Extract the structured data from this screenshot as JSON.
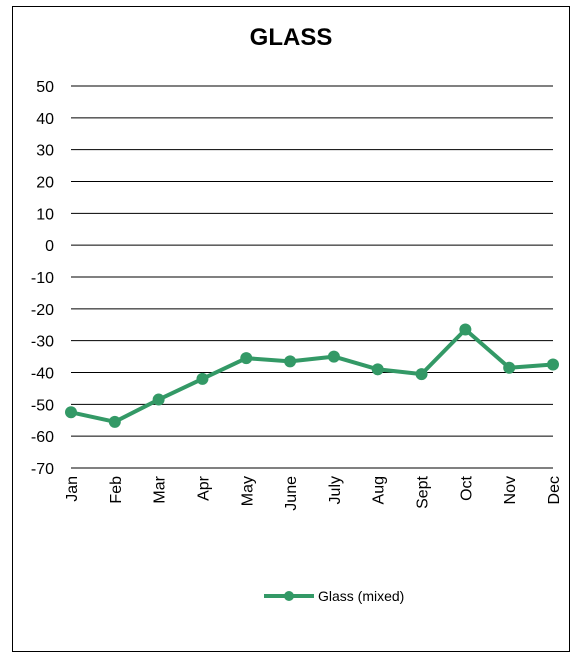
{
  "chart_data": {
    "type": "line",
    "title": "GLASS",
    "xlabel": "",
    "ylabel": "",
    "categories": [
      "Jan",
      "Feb",
      "Mar",
      "Apr",
      "May",
      "June",
      "July",
      "Aug",
      "Sept",
      "Oct",
      "Nov",
      "Dec"
    ],
    "y_ticks": [
      "50",
      "40",
      "30",
      "20",
      "10",
      "0",
      "-10",
      "-20",
      "-30",
      "-40",
      "-50",
      "-60",
      "-70"
    ],
    "ylim": [
      -70,
      50
    ],
    "grid": true,
    "legend_position": "bottom",
    "series": [
      {
        "name": "Glass (mixed)",
        "color": "#339966",
        "values": [
          -52.5,
          -55.5,
          -48.5,
          -42,
          -35.5,
          -36.5,
          -35,
          -39,
          -40.5,
          -26.5,
          -38.5,
          -37.5
        ]
      }
    ]
  }
}
